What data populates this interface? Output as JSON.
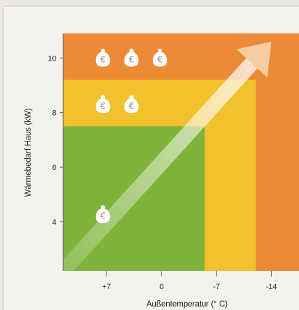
{
  "chart_data": {
    "type": "area",
    "xlabel": "Außentemperatur (° C)",
    "ylabel": "Wärmebedarf Haus (kW)",
    "x_ticks": [
      "+7",
      "0",
      "-7",
      "-14"
    ],
    "y_ticks": [
      4,
      6,
      8,
      10
    ],
    "ylim": [
      2.2,
      10.9
    ],
    "xlim": [
      12.5,
      -17.5
    ],
    "zones": [
      {
        "name": "low",
        "color": "#7fb33a",
        "x_from": 12.5,
        "x_to": -5.5,
        "y_from": 2.2,
        "y_to": 7.5,
        "cost_icons": 1
      },
      {
        "name": "medium",
        "color": "#f2c12e",
        "x_from": 12.5,
        "x_to": -12,
        "y_from": 2.2,
        "y_to": 9.2,
        "cost_icons": 2
      },
      {
        "name": "high",
        "color": "#ec8a35",
        "x_from": 12.5,
        "x_to": -17.5,
        "y_from": 2.2,
        "y_to": 10.9,
        "cost_icons": 3
      }
    ],
    "arrow": {
      "from": [
        12.5,
        2.2
      ],
      "to": [
        -14,
        10.6
      ]
    },
    "grid": false,
    "legend": "none"
  }
}
